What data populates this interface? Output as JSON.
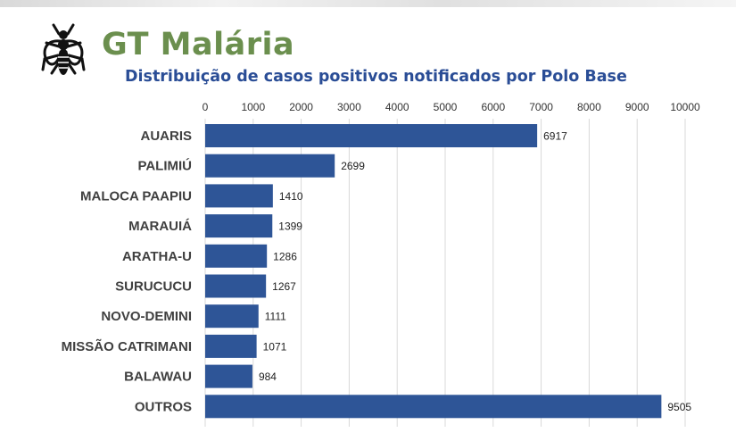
{
  "header": {
    "title": "GT Malária",
    "subtitle": "Distribuição de casos positivos notificados por Polo Base",
    "logo_icon": "mosquito-icon"
  },
  "chart_data": {
    "type": "bar",
    "orientation": "horizontal",
    "categories": [
      "AUARIS",
      "PALIMIÚ",
      "MALOCA PAAPIU",
      "MARAUIÁ",
      "ARATHA-U",
      "SURUCUCU",
      "NOVO-DEMINI",
      "MISSÃO CATRIMANI",
      "BALAWAU",
      "OUTROS"
    ],
    "values": [
      6917,
      2699,
      1410,
      1399,
      1286,
      1267,
      1111,
      1071,
      984,
      9505
    ],
    "xlim": [
      0,
      10000
    ],
    "ticks": [
      0,
      1000,
      2000,
      3000,
      4000,
      5000,
      6000,
      7000,
      8000,
      9000,
      10000
    ],
    "axis_position": "top",
    "grid": true,
    "legend": "none",
    "colors": {
      "bar": "#2e5597",
      "grid": "#d9d9d9",
      "title": "#6b8f4e",
      "subtitle": "#2a4d96"
    }
  }
}
